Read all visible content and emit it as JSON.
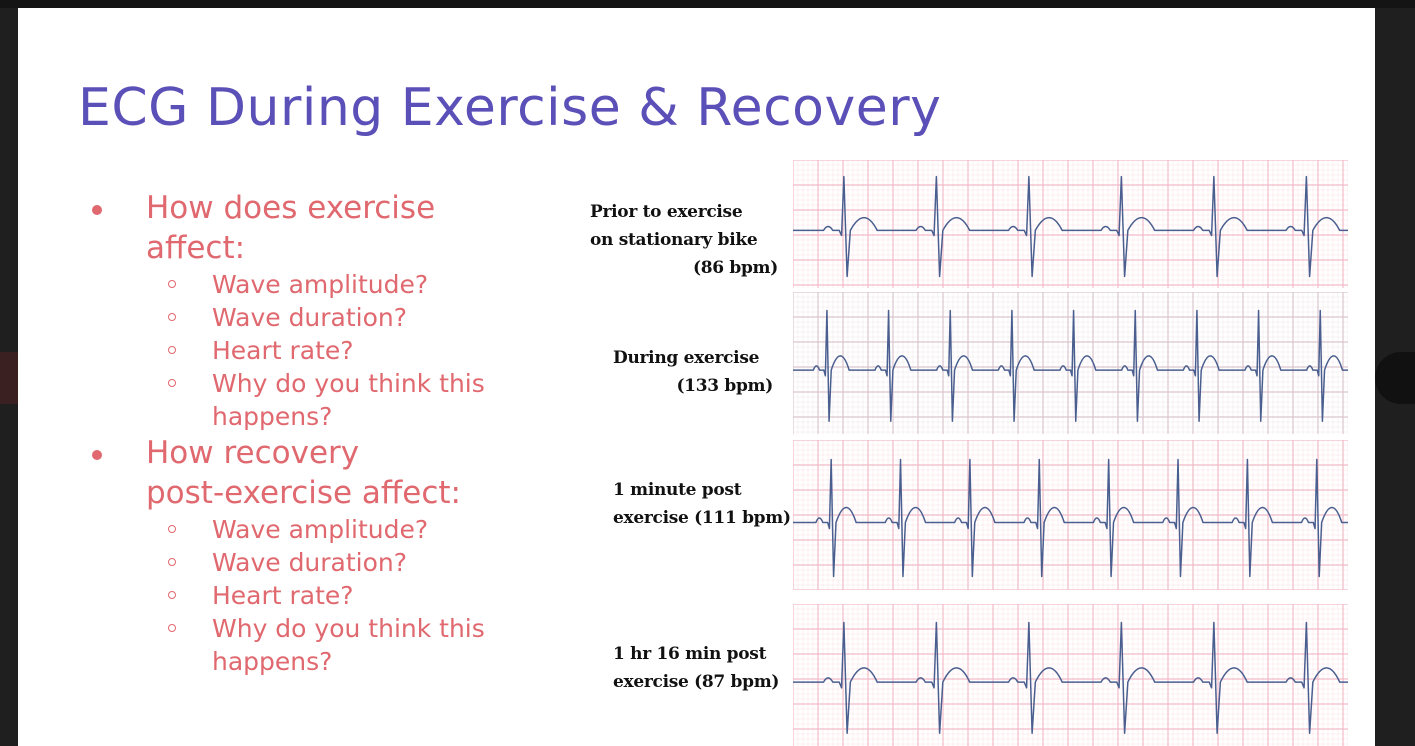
{
  "slide": {
    "title": "ECG During Exercise & Recovery"
  },
  "questions": [
    {
      "heading_lines": [
        "How does exercise",
        "affect:"
      ],
      "items": [
        "Wave amplitude?",
        "Wave duration?",
        "Heart rate?",
        "Why do you think this",
        "happens?"
      ]
    },
    {
      "heading_lines": [
        "How recovery",
        "post-exercise affect:"
      ],
      "items": [
        "Wave amplitude?",
        "Wave duration?",
        "Heart rate?",
        "Why do you think this",
        "happens?"
      ]
    }
  ],
  "ecg_strips": [
    {
      "label_lines": [
        "Prior to exercise",
        "on stationary bike",
        "(86 bpm)"
      ],
      "beats": 6,
      "grid_color": "#f2b9c6"
    },
    {
      "label_lines": [
        "During exercise",
        "(133 bpm)"
      ],
      "beats": 9,
      "grid_color": "#d9c3cc"
    },
    {
      "label_lines": [
        "1 minute post",
        "exercise (111 bpm)"
      ],
      "beats": 8,
      "grid_color": "#f0b8c4"
    },
    {
      "label_lines": [
        "1 hr 16 min post",
        "exercise (87 bpm)"
      ],
      "beats": 6,
      "grid_color": "#f2b9c6"
    }
  ],
  "colors": {
    "title": "#5b4fb8",
    "bullet_text": "#e0686f",
    "trace": "#4a5f8f"
  }
}
